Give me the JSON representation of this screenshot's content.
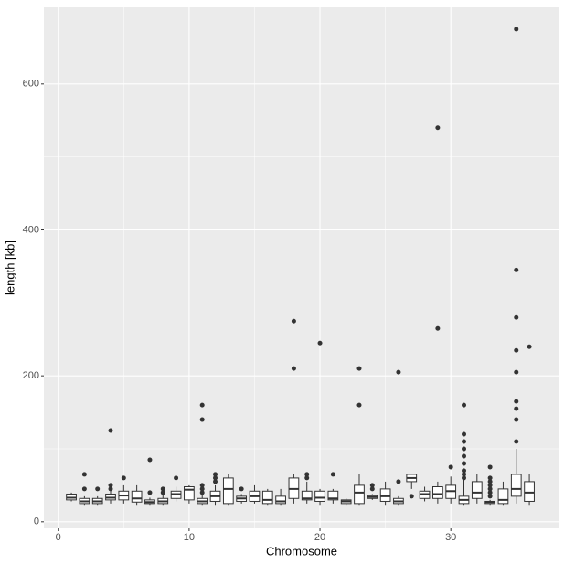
{
  "chart_data": {
    "type": "box",
    "x_label": "Chromosome",
    "y_label": "length [kb]",
    "xlim": [
      -1.1,
      38.3
    ],
    "ylim": [
      -9,
      705
    ],
    "xticks": [
      0,
      10,
      20,
      30
    ],
    "yticks": [
      0,
      200,
      400,
      600
    ],
    "xminor": [
      5,
      15,
      25,
      35
    ],
    "yminor": [
      100,
      300,
      500
    ],
    "grid": true,
    "panel_color": "#ebebeb",
    "color": "#333333",
    "boxes": [
      {
        "x": 1,
        "low": 28,
        "q1": 30,
        "median": 33,
        "q3": 38,
        "high": 40,
        "outliers": []
      },
      {
        "x": 2,
        "low": 22,
        "q1": 25,
        "median": 28,
        "q3": 32,
        "high": 35,
        "outliers": [
          65,
          45
        ]
      },
      {
        "x": 3,
        "low": 22,
        "q1": 25,
        "median": 28,
        "q3": 32,
        "high": 35,
        "outliers": [
          45
        ]
      },
      {
        "x": 4,
        "low": 25,
        "q1": 30,
        "median": 33,
        "q3": 38,
        "high": 45,
        "outliers": [
          125,
          50,
          45
        ]
      },
      {
        "x": 5,
        "low": 25,
        "q1": 30,
        "median": 36,
        "q3": 42,
        "high": 50,
        "outliers": [
          60
        ]
      },
      {
        "x": 6,
        "low": 22,
        "q1": 27,
        "median": 32,
        "q3": 42,
        "high": 50,
        "outliers": []
      },
      {
        "x": 7,
        "low": 22,
        "q1": 25,
        "median": 27,
        "q3": 30,
        "high": 33,
        "outliers": [
          85,
          40
        ]
      },
      {
        "x": 8,
        "low": 22,
        "q1": 25,
        "median": 28,
        "q3": 32,
        "high": 38,
        "outliers": [
          45,
          40
        ]
      },
      {
        "x": 9,
        "low": 28,
        "q1": 32,
        "median": 38,
        "q3": 42,
        "high": 48,
        "outliers": [
          60
        ]
      },
      {
        "x": 10,
        "low": 25,
        "q1": 30,
        "median": 44,
        "q3": 48,
        "high": 50,
        "outliers": []
      },
      {
        "x": 11,
        "low": 22,
        "q1": 25,
        "median": 28,
        "q3": 32,
        "high": 38,
        "outliers": [
          160,
          140,
          50,
          45,
          40
        ]
      },
      {
        "x": 12,
        "low": 22,
        "q1": 28,
        "median": 35,
        "q3": 42,
        "high": 50,
        "outliers": [
          65,
          60,
          55
        ]
      },
      {
        "x": 13,
        "low": 22,
        "q1": 25,
        "median": 45,
        "q3": 60,
        "high": 65,
        "outliers": []
      },
      {
        "x": 14,
        "low": 25,
        "q1": 28,
        "median": 32,
        "q3": 35,
        "high": 38,
        "outliers": [
          45
        ]
      },
      {
        "x": 15,
        "low": 25,
        "q1": 28,
        "median": 35,
        "q3": 42,
        "high": 50,
        "outliers": []
      },
      {
        "x": 16,
        "low": 22,
        "q1": 25,
        "median": 30,
        "q3": 42,
        "high": 45,
        "outliers": []
      },
      {
        "x": 17,
        "low": 22,
        "q1": 25,
        "median": 28,
        "q3": 35,
        "high": 45,
        "outliers": []
      },
      {
        "x": 18,
        "low": 25,
        "q1": 32,
        "median": 45,
        "q3": 60,
        "high": 65,
        "outliers": [
          275,
          210
        ]
      },
      {
        "x": 19,
        "low": 25,
        "q1": 30,
        "median": 32,
        "q3": 42,
        "high": 55,
        "outliers": [
          65,
          60
        ]
      },
      {
        "x": 20,
        "low": 22,
        "q1": 28,
        "median": 33,
        "q3": 42,
        "high": 45,
        "outliers": [
          245
        ]
      },
      {
        "x": 21,
        "low": 25,
        "q1": 30,
        "median": 32,
        "q3": 42,
        "high": 45,
        "outliers": [
          65
        ]
      },
      {
        "x": 22,
        "low": 22,
        "q1": 25,
        "median": 28,
        "q3": 30,
        "high": 32,
        "outliers": []
      },
      {
        "x": 23,
        "low": 22,
        "q1": 25,
        "median": 40,
        "q3": 50,
        "high": 65,
        "outliers": [
          210,
          160
        ]
      },
      {
        "x": 24,
        "low": 30,
        "q1": 32,
        "median": 34,
        "q3": 36,
        "high": 38,
        "outliers": [
          50,
          45
        ]
      },
      {
        "x": 25,
        "low": 22,
        "q1": 28,
        "median": 35,
        "q3": 45,
        "high": 55,
        "outliers": []
      },
      {
        "x": 26,
        "low": 22,
        "q1": 25,
        "median": 28,
        "q3": 32,
        "high": 35,
        "outliers": [
          205,
          55
        ]
      },
      {
        "x": 27,
        "low": 45,
        "q1": 55,
        "median": 60,
        "q3": 65,
        "high": 65,
        "outliers": [
          35
        ]
      },
      {
        "x": 28,
        "low": 28,
        "q1": 32,
        "median": 38,
        "q3": 42,
        "high": 48,
        "outliers": []
      },
      {
        "x": 29,
        "low": 25,
        "q1": 32,
        "median": 38,
        "q3": 48,
        "high": 55,
        "outliers": [
          540,
          265
        ]
      },
      {
        "x": 30,
        "low": 25,
        "q1": 32,
        "median": 42,
        "q3": 50,
        "high": 62,
        "outliers": [
          75
        ]
      },
      {
        "x": 31,
        "low": 22,
        "q1": 25,
        "median": 30,
        "q3": 35,
        "high": 60,
        "outliers": [
          160,
          120,
          110,
          100,
          90,
          80,
          70,
          65,
          60
        ]
      },
      {
        "x": 32,
        "low": 25,
        "q1": 32,
        "median": 40,
        "q3": 55,
        "high": 65,
        "outliers": []
      },
      {
        "x": 33,
        "low": 22,
        "q1": 25,
        "median": 27,
        "q3": 28,
        "high": 30,
        "outliers": [
          75,
          60,
          55,
          50,
          45,
          40,
          35
        ]
      },
      {
        "x": 34,
        "low": 22,
        "q1": 25,
        "median": 30,
        "q3": 45,
        "high": 55,
        "outliers": []
      },
      {
        "x": 35,
        "low": 25,
        "q1": 35,
        "median": 45,
        "q3": 65,
        "high": 100,
        "outliers": [
          675,
          345,
          280,
          235,
          205,
          165,
          155,
          140,
          110
        ]
      },
      {
        "x": 36,
        "low": 22,
        "q1": 28,
        "median": 40,
        "q3": 55,
        "high": 65,
        "outliers": [
          240
        ]
      }
    ]
  }
}
